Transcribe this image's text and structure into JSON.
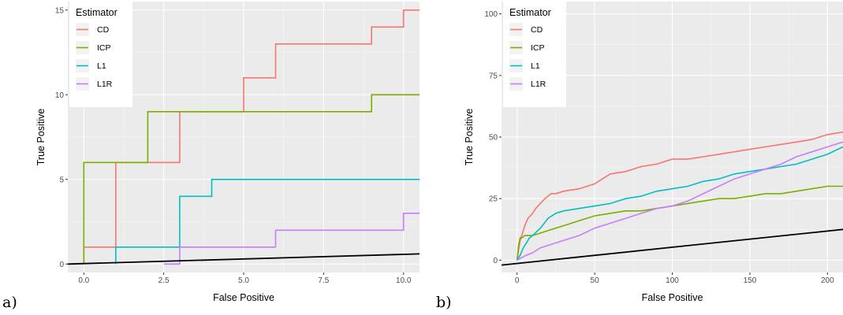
{
  "chart_data": [
    {
      "type": "line",
      "panel_label": "a)",
      "xlabel": "False Positive",
      "ylabel": "True Positive",
      "xlim": [
        -0.5,
        10.5
      ],
      "ylim": [
        -0.5,
        15.5
      ],
      "xticks": [
        0,
        2.5,
        5,
        7.5,
        10
      ],
      "xtick_labels": [
        "0.0",
        "2.5",
        "5.0",
        "7.5",
        "10.0"
      ],
      "yticks": [
        0,
        5,
        10,
        15
      ],
      "ytick_labels": [
        "0",
        "5",
        "10",
        "15"
      ],
      "grid": true,
      "legend": {
        "title": "Estimator",
        "position": "top-left"
      },
      "series": [
        {
          "name": "CD",
          "color": "#F8766D",
          "x": [
            0,
            0,
            1,
            1,
            3,
            3,
            5,
            5,
            6,
            6,
            9,
            9,
            10,
            10,
            10.5
          ],
          "y": [
            0,
            1,
            1,
            6,
            6,
            9,
            9,
            11,
            11,
            13,
            13,
            14,
            14,
            15,
            15
          ]
        },
        {
          "name": "ICP",
          "color": "#7CAE00",
          "x": [
            0,
            0,
            2,
            2,
            9,
            9,
            10.5
          ],
          "y": [
            0,
            6,
            6,
            9,
            9,
            10,
            10
          ]
        },
        {
          "name": "L1",
          "color": "#00BFC4",
          "x": [
            1,
            1,
            3,
            3,
            4,
            4,
            10.5
          ],
          "y": [
            0,
            1,
            1,
            4,
            4,
            5,
            5
          ]
        },
        {
          "name": "L1R",
          "color": "#C77CFF",
          "x": [
            2.5,
            3,
            3,
            6,
            6,
            10,
            10,
            10.5
          ],
          "y": [
            0,
            0,
            1,
            1,
            2,
            2,
            3,
            3
          ]
        },
        {
          "color": "#000000",
          "x": [
            -0.5,
            10.5
          ],
          "y": [
            0,
            0.6
          ]
        }
      ]
    },
    {
      "type": "line",
      "panel_label": "b)",
      "xlabel": "False Positive",
      "ylabel": "True Positive",
      "xlim": [
        -10,
        210
      ],
      "ylim": [
        -5,
        105
      ],
      "xticks": [
        0,
        50,
        100,
        150,
        200
      ],
      "xtick_labels": [
        "0",
        "50",
        "100",
        "150",
        "200"
      ],
      "yticks": [
        0,
        25,
        50,
        75,
        100
      ],
      "ytick_labels": [
        "0",
        "25",
        "50",
        "75",
        "100"
      ],
      "grid": true,
      "legend": {
        "title": "Estimator",
        "position": "top-left"
      },
      "series": [
        {
          "name": "CD",
          "color": "#F8766D",
          "x": [
            0,
            1,
            2,
            3,
            5,
            7,
            10,
            12,
            15,
            18,
            22,
            25,
            30,
            40,
            50,
            55,
            60,
            70,
            80,
            90,
            100,
            110,
            120,
            130,
            140,
            150,
            160,
            170,
            180,
            190,
            200,
            210
          ],
          "y": [
            0,
            4,
            8,
            10,
            14,
            17,
            19,
            21,
            23,
            25,
            27,
            27,
            28,
            29,
            31,
            33,
            35,
            36,
            38,
            39,
            41,
            41,
            42,
            43,
            44,
            45,
            46,
            47,
            48,
            49,
            51,
            52
          ]
        },
        {
          "name": "ICP",
          "color": "#7CAE00",
          "x": [
            0,
            1,
            2,
            3,
            5,
            10,
            15,
            20,
            25,
            30,
            40,
            50,
            60,
            70,
            80,
            90,
            100,
            110,
            120,
            130,
            140,
            150,
            160,
            170,
            180,
            190,
            200,
            210
          ],
          "y": [
            0,
            6,
            9,
            9,
            10,
            10,
            11,
            12,
            13,
            14,
            16,
            18,
            19,
            20,
            20,
            21,
            22,
            23,
            24,
            25,
            25,
            26,
            27,
            27,
            28,
            29,
            30,
            30
          ]
        },
        {
          "name": "L1",
          "color": "#00BFC4",
          "x": [
            0,
            2,
            4,
            6,
            8,
            10,
            15,
            20,
            25,
            30,
            40,
            50,
            60,
            70,
            80,
            90,
            100,
            110,
            120,
            130,
            140,
            150,
            160,
            170,
            180,
            190,
            200,
            210
          ],
          "y": [
            0,
            2,
            5,
            7,
            9,
            10,
            13,
            17,
            19,
            20,
            21,
            22,
            23,
            25,
            26,
            28,
            29,
            30,
            32,
            33,
            35,
            36,
            37,
            38,
            39,
            41,
            43,
            46
          ]
        },
        {
          "name": "L1R",
          "color": "#C77CFF",
          "x": [
            0,
            3,
            6,
            10,
            15,
            20,
            30,
            40,
            50,
            60,
            70,
            80,
            90,
            100,
            110,
            120,
            130,
            140,
            150,
            160,
            170,
            180,
            190,
            200,
            210
          ],
          "y": [
            0,
            1,
            2,
            3,
            5,
            6,
            8,
            10,
            13,
            15,
            17,
            19,
            21,
            22,
            24,
            27,
            30,
            33,
            35,
            37,
            39,
            42,
            44,
            46,
            48
          ]
        },
        {
          "color": "#000000",
          "x": [
            -10,
            210
          ],
          "y": [
            -2,
            12.5
          ]
        }
      ]
    }
  ]
}
